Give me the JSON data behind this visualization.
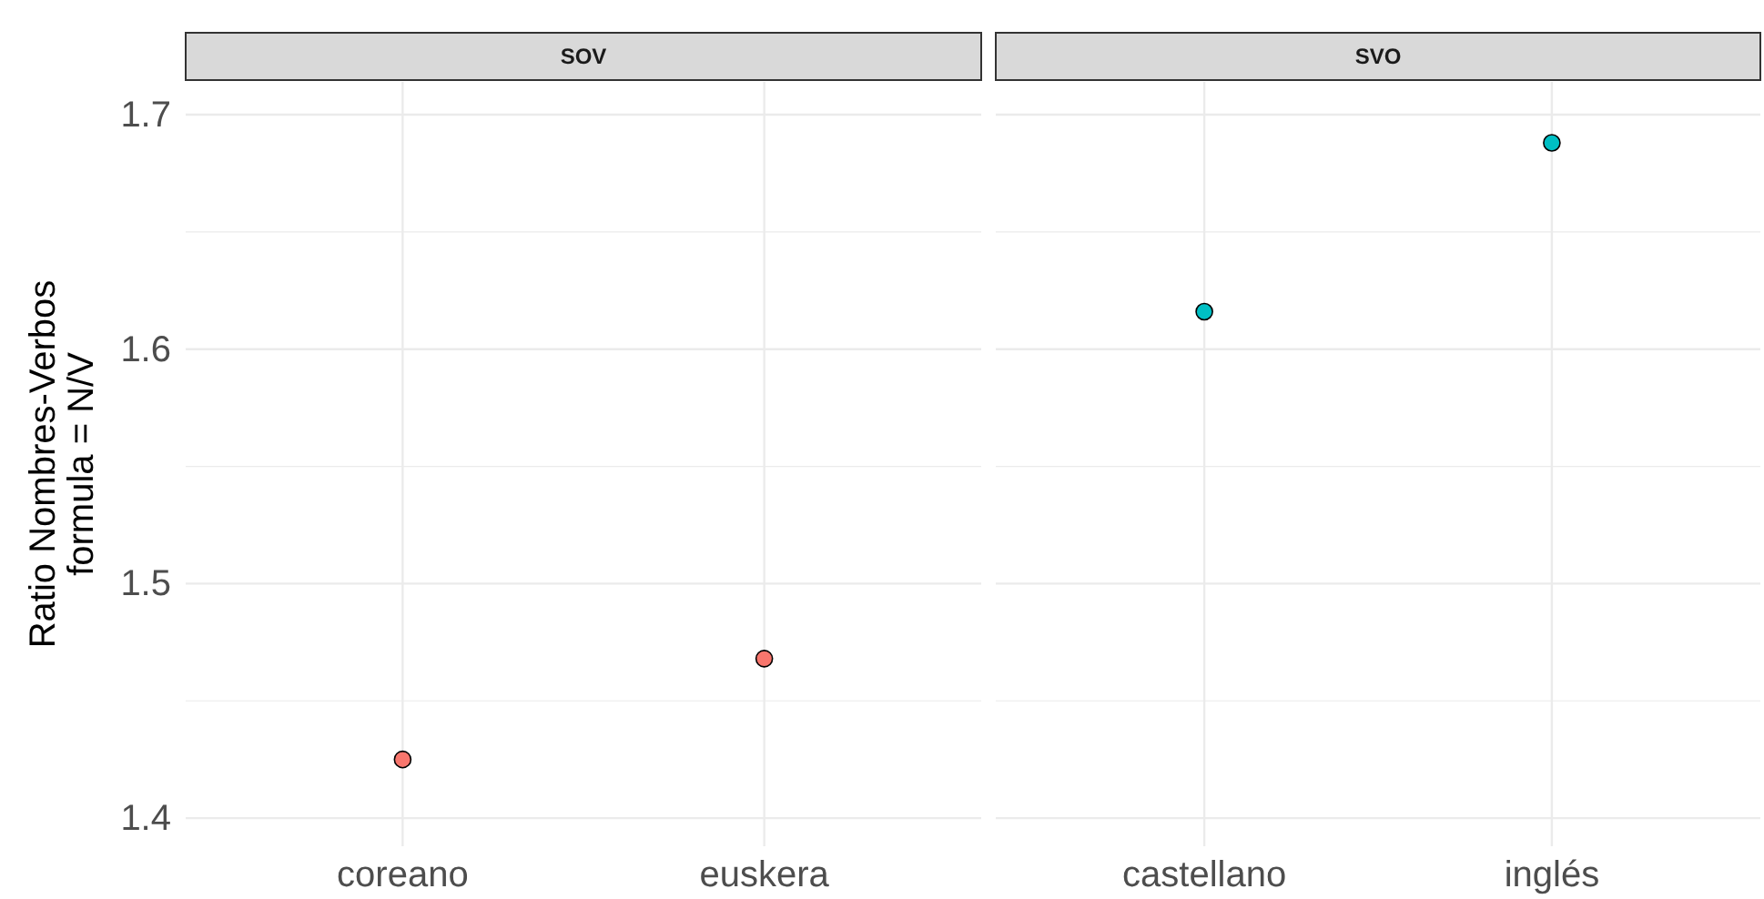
{
  "chart_data": [
    {
      "type": "scatter",
      "title": "SOV",
      "ylabel": "Ratio Nombres-Verbos\nformula = N/V",
      "categories": [
        "coreano",
        "euskera"
      ],
      "series": [
        {
          "color": "#f8766d",
          "values": [
            1.425,
            1.468
          ]
        }
      ],
      "ylim": [
        1.388,
        1.714
      ],
      "yticks": [
        1.4,
        {
          "value": 1.45,
          "label": null
        },
        1.5,
        {
          "value": 1.55,
          "label": null
        },
        1.6,
        {
          "value": 1.65,
          "label": null
        },
        1.7
      ],
      "grid": true,
      "marker": "circle"
    },
    {
      "type": "scatter",
      "title": "SVO",
      "categories": [
        "castellano",
        "inglés"
      ],
      "series": [
        {
          "color": "#00bfc4",
          "values": [
            1.616,
            1.688
          ]
        }
      ],
      "ylim": [
        1.388,
        1.714
      ],
      "yticks": [
        1.4,
        {
          "value": 1.45,
          "label": null
        },
        1.5,
        {
          "value": 1.55,
          "label": null
        },
        1.6,
        {
          "value": 1.65,
          "label": null
        },
        1.7
      ],
      "grid": true,
      "marker": "circle",
      "tick_labels": "x"
    }
  ]
}
